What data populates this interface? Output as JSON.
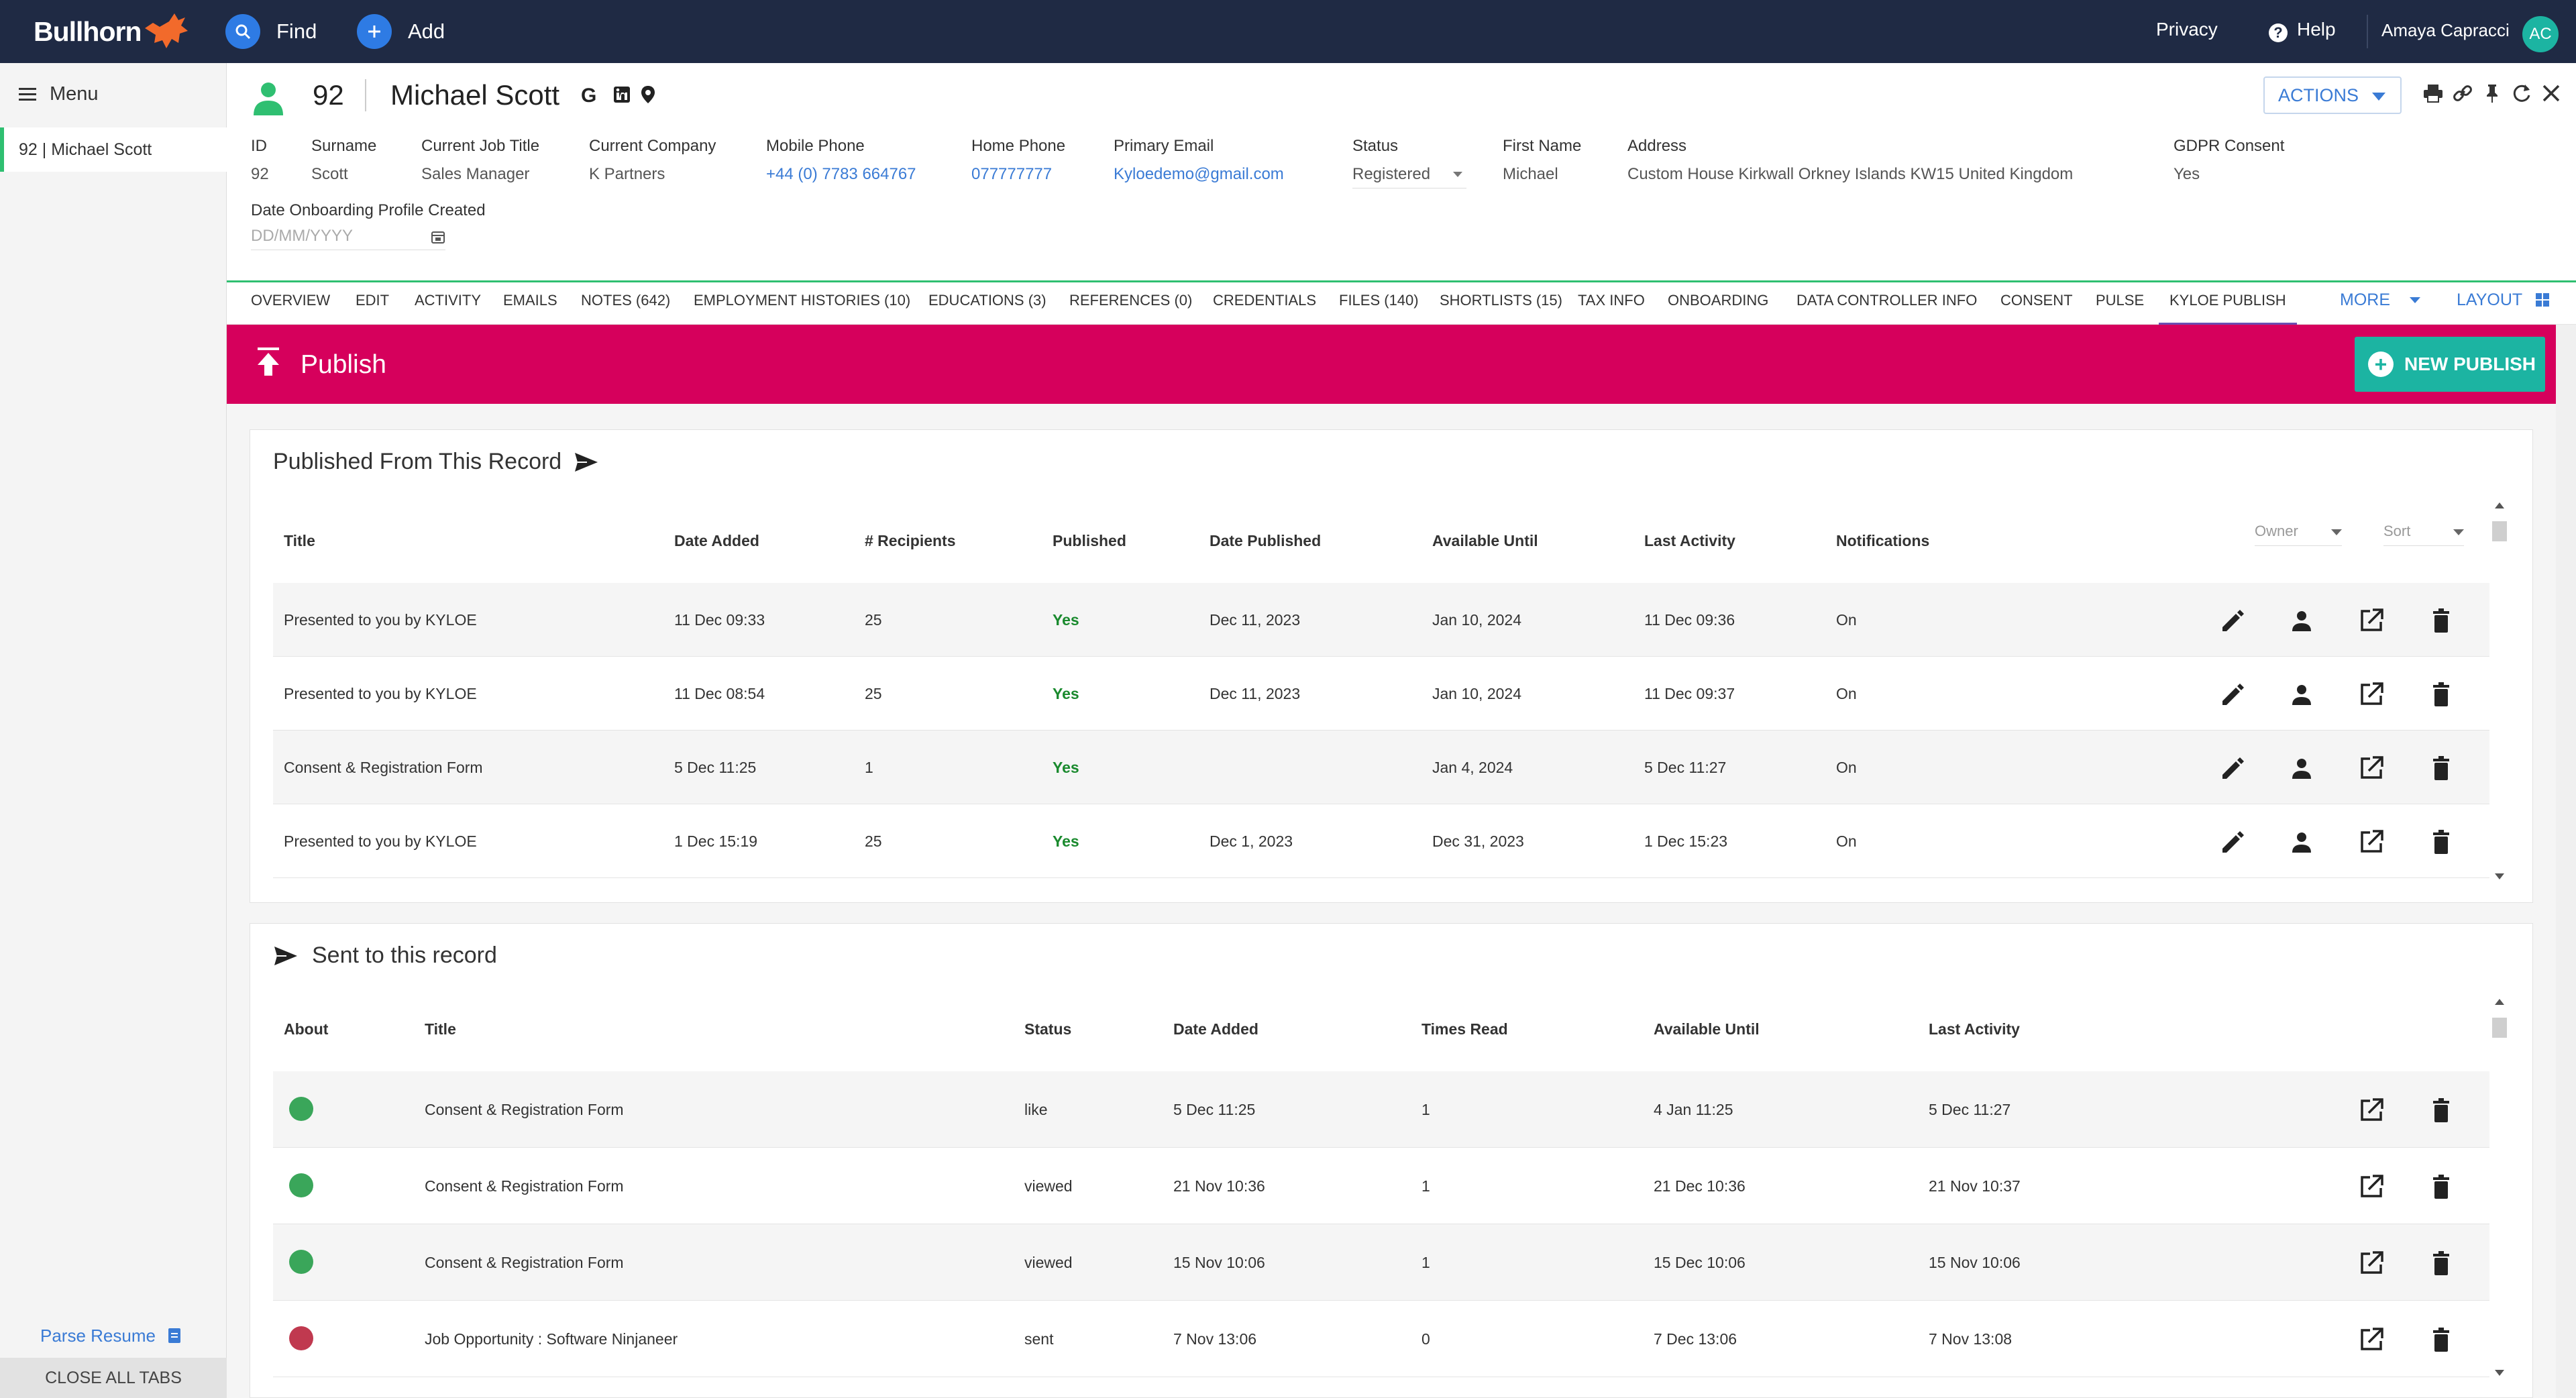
{
  "topbar": {
    "logo": "Bullhorn",
    "find_label": "Find",
    "add_label": "Add",
    "privacy_label": "Privacy",
    "help_label": "Help",
    "user_name": "Amaya Capracci",
    "user_initials": "AC"
  },
  "sidebar": {
    "menu_label": "Menu",
    "open_tab": "92 | Michael Scott",
    "parse_resume": "Parse Resume",
    "close_all": "CLOSE ALL TABS"
  },
  "record": {
    "id": "92",
    "name": "Michael Scott",
    "actions_label": "ACTIONS",
    "fields": [
      {
        "label": "ID",
        "value": "92"
      },
      {
        "label": "Surname",
        "value": "Scott"
      },
      {
        "label": "Current Job Title",
        "value": "Sales Manager"
      },
      {
        "label": "Current Company",
        "value": "K Partners"
      },
      {
        "label": "Mobile Phone",
        "value": "+44 (0) 7783 664767"
      },
      {
        "label": "Home Phone",
        "value": "077777777"
      },
      {
        "label": "Primary Email",
        "value": "Kyloedemo@gmail.com"
      },
      {
        "label": "Status",
        "value": "Registered"
      },
      {
        "label": "First Name",
        "value": "Michael"
      },
      {
        "label": "Address",
        "value": "Custom House Kirkwall Orkney Islands KW15 United Kingdom"
      },
      {
        "label": "GDPR Consent",
        "value": "Yes"
      }
    ],
    "onboarding_label": "Date Onboarding Profile Created",
    "onboarding_placeholder": "DD/MM/YYYY"
  },
  "tabs": [
    "OVERVIEW",
    "EDIT",
    "ACTIVITY",
    "EMAILS",
    "NOTES (642)",
    "EMPLOYMENT HISTORIES (10)",
    "EDUCATIONS (3)",
    "REFERENCES (0)",
    "CREDENTIALS",
    "FILES (140)",
    "SHORTLISTS (15)",
    "TAX INFO",
    "ONBOARDING",
    "DATA CONTROLLER INFO",
    "CONSENT",
    "PULSE",
    "KYLOE PUBLISH"
  ],
  "tabs_more": "MORE",
  "tabs_layout": "LAYOUT",
  "publish": {
    "title": "Publish",
    "new_button": "NEW PUBLISH"
  },
  "published_from": {
    "title": "Published From This Record",
    "headers": [
      "Title",
      "Date Added",
      "# Recipients",
      "Published",
      "Date Published",
      "Available Until",
      "Last Activity",
      "Notifications"
    ],
    "owner_filter": "Owner",
    "sort_filter": "Sort",
    "rows": [
      [
        "Presented to you by KYLOE",
        "11 Dec 09:33",
        "25",
        "Yes",
        "Dec 11, 2023",
        "Jan 10, 2024",
        "11 Dec 09:36",
        "On"
      ],
      [
        "Presented to you by KYLOE",
        "11 Dec 08:54",
        "25",
        "Yes",
        "Dec 11, 2023",
        "Jan 10, 2024",
        "11 Dec 09:37",
        "On"
      ],
      [
        "Consent & Registration Form",
        "5 Dec 11:25",
        "1",
        "Yes",
        "",
        "Jan 4, 2024",
        "5 Dec 11:27",
        "On"
      ],
      [
        "Presented to you by KYLOE",
        "1 Dec 15:19",
        "25",
        "Yes",
        "Dec 1, 2023",
        "Dec 31, 2023",
        "1 Dec 15:23",
        "On"
      ]
    ]
  },
  "sent_to": {
    "title": "Sent to this record",
    "headers": [
      "About",
      "Title",
      "Status",
      "Date Added",
      "Times Read",
      "Available Until",
      "Last Activity"
    ],
    "rows": [
      {
        "dot": "#3aa65a",
        "cells": [
          "Consent & Registration Form",
          "like",
          "5 Dec 11:25",
          "1",
          "4 Jan 11:25",
          "5 Dec 11:27"
        ]
      },
      {
        "dot": "#3aa65a",
        "cells": [
          "Consent & Registration Form",
          "viewed",
          "21 Nov 10:36",
          "1",
          "21 Dec 10:36",
          "21 Nov 10:37"
        ]
      },
      {
        "dot": "#3aa65a",
        "cells": [
          "Consent & Registration Form",
          "viewed",
          "15 Nov 10:06",
          "1",
          "15 Dec 10:06",
          "15 Nov 10:06"
        ]
      },
      {
        "dot": "#c0394f",
        "cells": [
          "Job Opportunity : Software Ninjaneer",
          "sent",
          "7 Nov 13:06",
          "0",
          "7 Dec 13:06",
          "7 Nov 13:08"
        ]
      }
    ]
  },
  "colors": {
    "topbar": "#1f2a44",
    "publish_bar": "#d6005c",
    "accent": "#1cb4a2",
    "link": "#3a7bd5",
    "yes": "#1a8a2e"
  }
}
